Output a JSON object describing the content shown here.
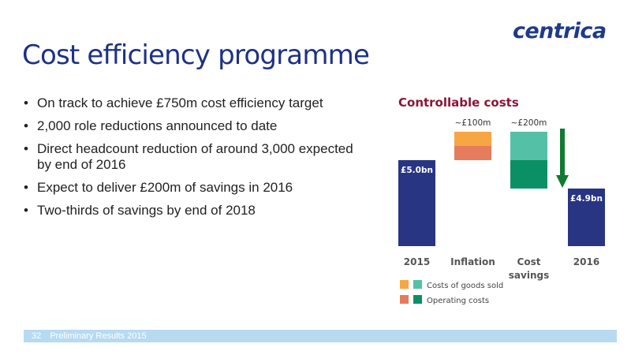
{
  "header": {
    "logo": "centrica",
    "title": "Cost efficiency programme"
  },
  "bullets": [
    "On track to achieve £750m cost efficiency target",
    "2,000 role reductions announced to date",
    "Direct headcount reduction of around 3,000 expected by end of 2016",
    "Expect to deliver £200m of savings in 2016",
    "Two-thirds of savings by end of 2018"
  ],
  "footer": {
    "page_number": "32",
    "text": "Preliminary Results 2015"
  },
  "colors": {
    "title": "#1d3285",
    "chart_title": "#8a1538",
    "total_bar": "#283583",
    "inflation_cogs": "#f7a644",
    "inflation_opex": "#e57c5b",
    "savings_cogs": "#54c1a7",
    "savings_opex": "#0b9065",
    "arrow": "#117a30",
    "footer_bar": "#b7daf0"
  },
  "chart_data": {
    "type": "waterfall",
    "title": "Controllable costs",
    "categories": [
      "2015",
      "Inflation",
      "Cost\nsavings",
      "2016"
    ],
    "totals": [
      {
        "category": "2015",
        "value": 5.0,
        "label": "£5.0bn"
      },
      {
        "category": "2016",
        "value": 4.9,
        "label": "£4.9bn"
      }
    ],
    "steps": [
      {
        "category": "Inflation",
        "label": "~£100m",
        "total": 0.1,
        "segments": [
          {
            "name": "Costs of goods sold",
            "value": 0.05
          },
          {
            "name": "Operating costs",
            "value": 0.05
          }
        ]
      },
      {
        "category": "Cost\nsavings",
        "label": "~£200m",
        "total": -0.2,
        "segments": [
          {
            "name": "Costs of goods sold",
            "value": -0.1
          },
          {
            "name": "Operating costs",
            "value": -0.1
          }
        ]
      }
    ],
    "legend": [
      {
        "label": "Costs of goods sold",
        "colors": [
          "#f7a644",
          "#54c1a7"
        ]
      },
      {
        "label": "Operating costs",
        "colors": [
          "#e57c5b",
          "#0b9065"
        ]
      }
    ],
    "grid": false,
    "legend_position": "bottom"
  }
}
